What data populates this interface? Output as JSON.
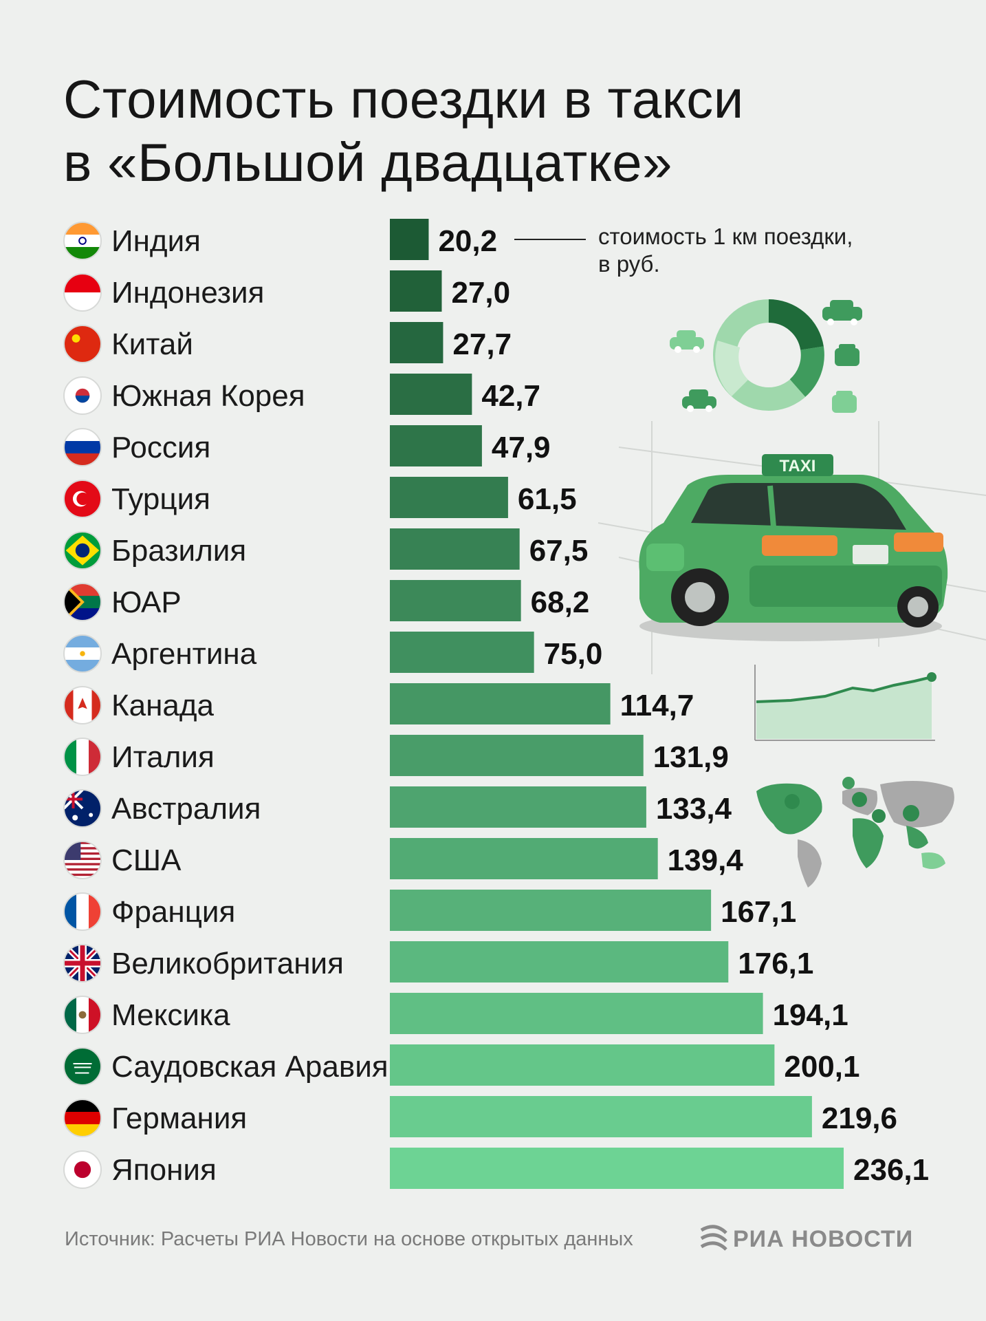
{
  "title": "Стоимость поездки в такси\nв «Большой двадцатке»",
  "unit_note": "стоимость 1 км поездки,\nв руб.",
  "source": "Источник: Расчеты РИА Новости на основе открытых данных",
  "brand": "РИА НОВОСТИ",
  "taxi_sign": "TAXI",
  "colors": {
    "bar_dark": "#1c5a34",
    "bar_light": "#6dd394",
    "accent": "#3e9e5e",
    "background": "#eef0ee"
  },
  "icons": [
    "flag-icon",
    "donut-chart-icon",
    "car-icon",
    "taxi-car-icon",
    "line-chart-icon",
    "world-map-icon",
    "ria-logo-icon"
  ],
  "chart_data": {
    "type": "bar",
    "orientation": "horizontal",
    "categories": [
      "Индия",
      "Индонезия",
      "Китай",
      "Южная Корея",
      "Россия",
      "Турция",
      "Бразилия",
      "ЮАР",
      "Аргентина",
      "Канада",
      "Италия",
      "Австралия",
      "США",
      "Франция",
      "Великобритания",
      "Мексика",
      "Саудовская Аравия",
      "Германия",
      "Япония"
    ],
    "values": [
      20.2,
      27.0,
      27.7,
      42.7,
      47.9,
      61.5,
      67.5,
      68.2,
      75.0,
      114.7,
      131.9,
      133.4,
      139.4,
      167.1,
      176.1,
      194.1,
      200.1,
      219.6,
      236.1
    ],
    "value_labels": [
      "20,2",
      "27,0",
      "27,7",
      "42,7",
      "47,9",
      "61,5",
      "67,5",
      "68,2",
      "75,0",
      "114,7",
      "131,9",
      "133,4",
      "139,4",
      "167,1",
      "176,1",
      "194,1",
      "200,1",
      "219,6",
      "236,1"
    ],
    "flags": [
      "india",
      "indonesia",
      "china",
      "south-korea",
      "russia",
      "turkey",
      "brazil",
      "south-africa",
      "argentina",
      "canada",
      "italy",
      "australia",
      "usa",
      "france",
      "uk",
      "mexico",
      "saudi-arabia",
      "germany",
      "japan"
    ],
    "title": "Стоимость поездки в такси в «Большой двадцатке»",
    "ylabel": "стоимость 1 км поездки, в руб.",
    "xlim": [
      0,
      236.1
    ],
    "grid": false,
    "legend": "none"
  }
}
